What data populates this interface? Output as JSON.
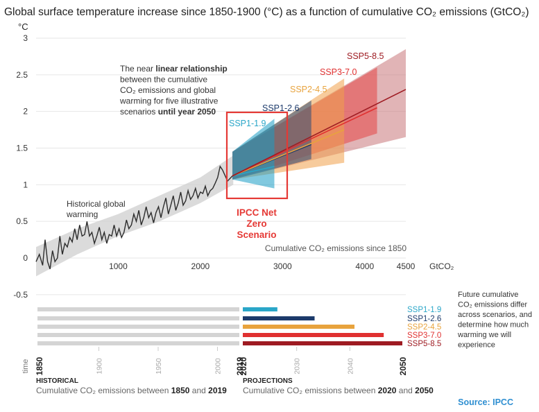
{
  "chart_data": {
    "type": "line",
    "title": "Global surface temperature increase since 1850-1900 (°C) as a function of cumulative CO₂ emissions (GtCO₂)",
    "ylabel": "°C",
    "xlabel": "Cumulative CO₂ emissions since 1850",
    "x_unit": "GtCO₂",
    "xlim": [
      0,
      4500
    ],
    "ylim": [
      -0.5,
      3
    ],
    "x_ticks": [
      1000,
      2000,
      3000,
      4000,
      4500
    ],
    "y_ticks": [
      -0.5,
      0,
      0.5,
      1,
      1.5,
      2,
      2.5,
      3
    ],
    "historical_label": "Historical global warming",
    "historical": [
      [
        0,
        -0.05
      ],
      [
        40,
        0.05
      ],
      [
        80,
        -0.1
      ],
      [
        110,
        0.25
      ],
      [
        140,
        -0.05
      ],
      [
        170,
        -0.15
      ],
      [
        200,
        0.1
      ],
      [
        230,
        -0.05
      ],
      [
        260,
        0.0
      ],
      [
        290,
        0.3
      ],
      [
        320,
        0.05
      ],
      [
        350,
        0.2
      ],
      [
        380,
        0.15
      ],
      [
        410,
        0.28
      ],
      [
        440,
        0.22
      ],
      [
        470,
        0.4
      ],
      [
        500,
        0.25
      ],
      [
        530,
        0.45
      ],
      [
        560,
        0.3
      ],
      [
        590,
        0.32
      ],
      [
        620,
        0.5
      ],
      [
        650,
        0.3
      ],
      [
        680,
        0.35
      ],
      [
        710,
        0.2
      ],
      [
        740,
        0.3
      ],
      [
        770,
        0.42
      ],
      [
        800,
        0.25
      ],
      [
        830,
        0.35
      ],
      [
        860,
        0.2
      ],
      [
        890,
        0.32
      ],
      [
        920,
        0.3
      ],
      [
        950,
        0.45
      ],
      [
        980,
        0.3
      ],
      [
        1010,
        0.4
      ],
      [
        1040,
        0.28
      ],
      [
        1070,
        0.35
      ],
      [
        1100,
        0.52
      ],
      [
        1130,
        0.4
      ],
      [
        1160,
        0.45
      ],
      [
        1190,
        0.6
      ],
      [
        1220,
        0.5
      ],
      [
        1250,
        0.65
      ],
      [
        1280,
        0.45
      ],
      [
        1310,
        0.55
      ],
      [
        1340,
        0.7
      ],
      [
        1370,
        0.55
      ],
      [
        1400,
        0.62
      ],
      [
        1430,
        0.48
      ],
      [
        1460,
        0.62
      ],
      [
        1490,
        0.7
      ],
      [
        1520,
        0.55
      ],
      [
        1550,
        0.7
      ],
      [
        1580,
        0.82
      ],
      [
        1610,
        0.6
      ],
      [
        1640,
        0.72
      ],
      [
        1670,
        0.85
      ],
      [
        1700,
        0.65
      ],
      [
        1730,
        0.75
      ],
      [
        1760,
        0.9
      ],
      [
        1790,
        0.72
      ],
      [
        1820,
        0.78
      ],
      [
        1850,
        0.92
      ],
      [
        1880,
        0.8
      ],
      [
        1910,
        0.85
      ],
      [
        1940,
        0.95
      ],
      [
        1970,
        0.82
      ],
      [
        2000,
        0.9
      ],
      [
        2030,
        0.88
      ],
      [
        2060,
        0.98
      ],
      [
        2090,
        0.85
      ],
      [
        2120,
        0.92
      ],
      [
        2150,
        0.95
      ],
      [
        2180,
        1.02
      ],
      [
        2210,
        1.1
      ],
      [
        2240,
        1.25
      ],
      [
        2270,
        1.2
      ]
    ],
    "historical_band": {
      "x": [
        0,
        500,
        1000,
        1500,
        2000,
        2400
      ],
      "lower": [
        -0.25,
        0.05,
        0.3,
        0.5,
        0.75,
        1.0
      ],
      "upper": [
        0.15,
        0.4,
        0.6,
        0.85,
        1.1,
        1.4
      ]
    },
    "annotation": {
      "lines": [
        [
          "The near ",
          "linear relationship"
        ],
        [
          "between the cumulative"
        ],
        [
          "CO₂ emissions and global"
        ],
        [
          "warming for five illustrative"
        ],
        [
          "scenarios ",
          "until year 2050"
        ]
      ]
    },
    "highlight": {
      "label_lines": [
        "IPCC Net",
        "Zero",
        "Scenario"
      ],
      "x_range": [
        2270,
        2970
      ],
      "y_range": [
        0.85,
        2.1
      ],
      "color": "#e53935"
    },
    "scenarios": [
      {
        "name": "SSP1-1.9",
        "color": "#2aa6c8",
        "fill": "#1a9dc4",
        "x_end": 2900,
        "y_end": 1.25,
        "upper_end": 1.9,
        "lower_end": 0.95
      },
      {
        "name": "SSP1-2.6",
        "color": "#1c3a6b",
        "fill": "#2a4a76",
        "x_end": 3350,
        "y_end": 1.55,
        "upper_end": 2.15,
        "lower_end": 1.35
      },
      {
        "name": "SSP2-4.5",
        "color": "#e8a33d",
        "fill": "#f0a04a",
        "x_end": 3750,
        "y_end": 1.75,
        "upper_end": 2.45,
        "lower_end": 1.3
      },
      {
        "name": "SSP3-7.0",
        "color": "#e03030",
        "fill": "#e64545",
        "x_end": 4150,
        "y_end": 2.05,
        "upper_end": 2.6,
        "lower_end": 1.7
      },
      {
        "name": "SSP5-8.5",
        "color": "#9e1b22",
        "fill": "#c9777a",
        "x_end": 4500,
        "y_end": 2.3,
        "upper_end": 2.85,
        "lower_end": 1.65
      }
    ],
    "scenario_start": {
      "x": 2390,
      "y": 1.12,
      "lower": 1.07,
      "upper": 1.45
    },
    "timeline": {
      "time_label": "time",
      "years": [
        "1850",
        "1900",
        "1950",
        "2000",
        "2019",
        "2020",
        "2030",
        "2040",
        "2050"
      ],
      "bold_years": [
        "1850",
        "2019",
        "2020",
        "2050"
      ],
      "bars": [
        {
          "name": "SSP1-1.9",
          "color": "#2aa6c8",
          "end_year": 2026.5
        },
        {
          "name": "SSP1-2.6",
          "color": "#1c3a6b",
          "end_year": 2033.5
        },
        {
          "name": "SSP2-4.5",
          "color": "#e8a33d",
          "end_year": 2041
        },
        {
          "name": "SSP3-7.0",
          "color": "#e03030",
          "end_year": 2046.5
        },
        {
          "name": "SSP5-8.5",
          "color": "#9e1b22",
          "end_year": 2050
        }
      ],
      "right_note": [
        "Future cumulative",
        "CO₂ emissions differ",
        "across scenarios, and",
        "determine how much",
        "warming we will",
        "experience"
      ],
      "historical_title": "HISTORICAL",
      "historical_caption": [
        "Cumulative CO₂ emissions between ",
        "1850",
        " and ",
        "2019"
      ],
      "projections_title": "PROJECTIONS",
      "projections_caption": [
        "Cumulative CO₂ emissions between ",
        "2020",
        " and ",
        "2050"
      ]
    },
    "source": "Source: IPCC"
  }
}
